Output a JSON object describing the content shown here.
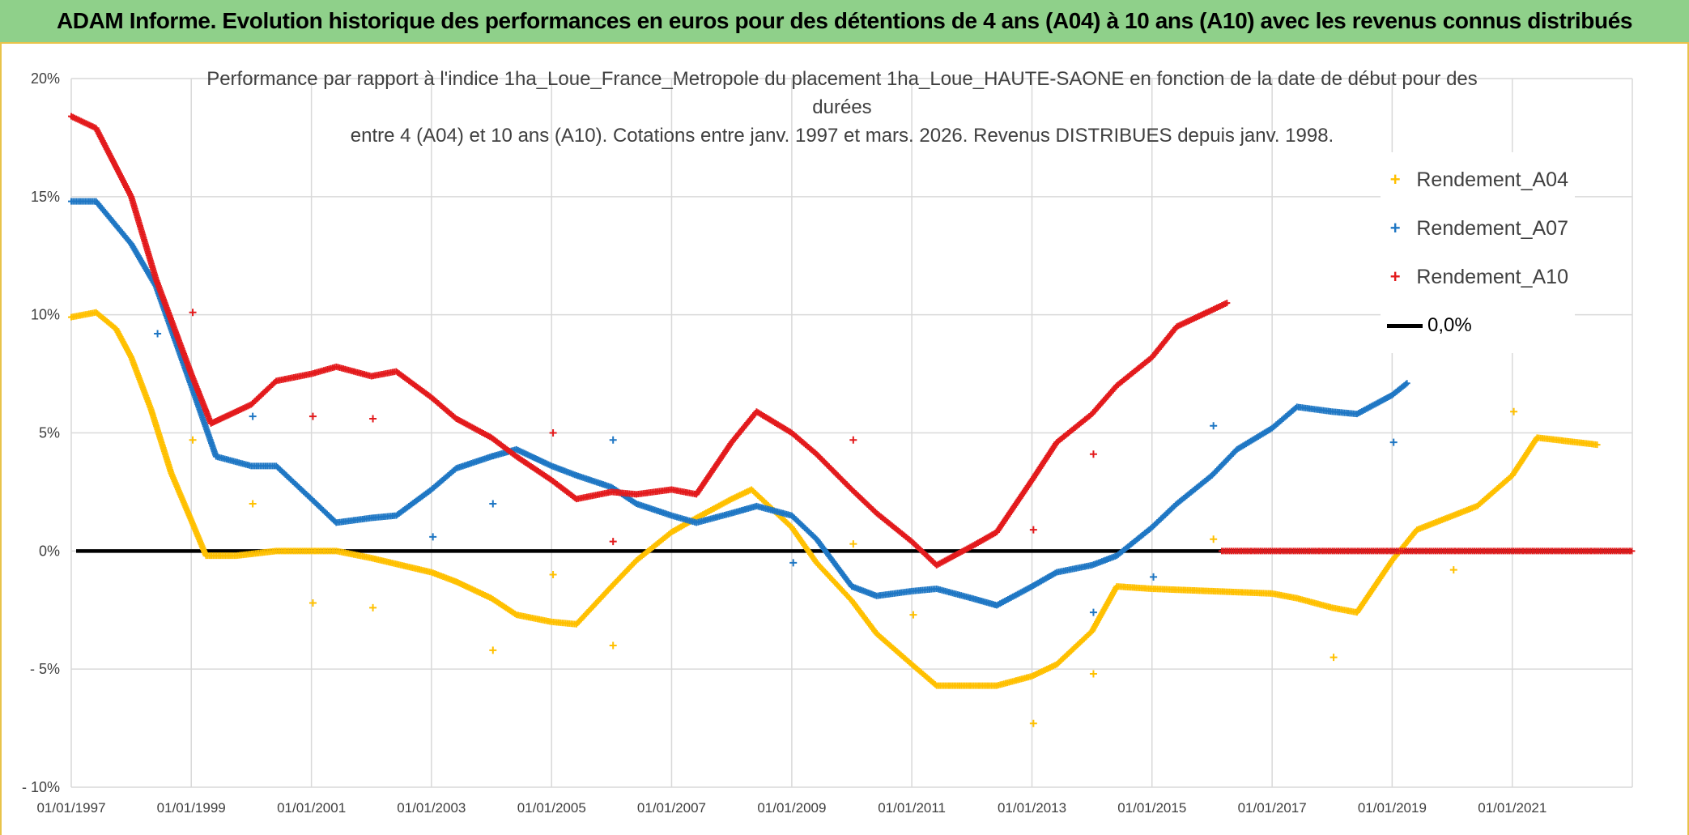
{
  "banner": {
    "title": "ADAM Informe. Evolution historique des performances en euros pour des détentions de 4 ans (A04) à 10 ans (A10) avec les revenus connus distribués"
  },
  "chart_data": {
    "type": "scatter",
    "title_lines": [
      "Performance par rapport à l'indice 1ha_Loue_France_Metropole  du placement 1ha_Loue_HAUTE-SAONE en fonction de la date de début pour des",
      "durées",
      "entre 4 (A04) et 10 ans (A10). Cotations entre janv. 1997 et mars. 2026. Revenus DISTRIBUES depuis janv. 1998."
    ],
    "y_ticks": [
      "20%",
      "15%",
      "10%",
      "5%",
      "0%",
      "- 5%",
      "- 10%"
    ],
    "y_tick_values": [
      20,
      15,
      10,
      5,
      0,
      -5,
      -10
    ],
    "ylim": [
      -10,
      20
    ],
    "x_ticks": [
      "01/01/1997",
      "01/01/1999",
      "01/01/2001",
      "01/01/2003",
      "01/01/2005",
      "01/01/2007",
      "01/01/2009",
      "01/01/2011",
      "01/01/2013",
      "01/01/2015",
      "01/01/2017",
      "01/01/2019",
      "01/01/2021"
    ],
    "xlim": [
      "1997-01-01",
      "2023-01-01"
    ],
    "grid": true,
    "legend_position": "right",
    "zero_line": {
      "name": "0,0%",
      "color": "#000000",
      "value": 0
    },
    "series": [
      {
        "name": "Rendement_A04",
        "color": "#ffc000",
        "points": [
          [
            "1997-01-01",
            9.9
          ],
          [
            "1997-06-01",
            10.1
          ],
          [
            "1997-10-01",
            9.4
          ],
          [
            "1998-01-01",
            8.2
          ],
          [
            "1998-05-01",
            6.0
          ],
          [
            "1998-09-01",
            3.3
          ],
          [
            "1999-01-01",
            1.3
          ],
          [
            "1999-04-01",
            -0.2
          ],
          [
            "1999-10-01",
            -0.2
          ],
          [
            "2000-06-01",
            0.0
          ],
          [
            "2001-01-01",
            0.0
          ],
          [
            "2001-06-01",
            0.0
          ],
          [
            "2002-01-01",
            -0.3
          ],
          [
            "2003-01-01",
            -0.9
          ],
          [
            "2003-06-01",
            -1.3
          ],
          [
            "2004-01-01",
            -2.0
          ],
          [
            "2004-06-01",
            -2.7
          ],
          [
            "2005-01-01",
            -3.0
          ],
          [
            "2005-06-01",
            -3.1
          ],
          [
            "2006-01-01",
            -1.5
          ],
          [
            "2006-06-01",
            -0.4
          ],
          [
            "2007-01-01",
            0.8
          ],
          [
            "2007-06-01",
            1.4
          ],
          [
            "2008-01-01",
            2.2
          ],
          [
            "2008-05-01",
            2.6
          ],
          [
            "2009-01-01",
            1.0
          ],
          [
            "2009-06-01",
            -0.5
          ],
          [
            "2010-01-01",
            -2.1
          ],
          [
            "2010-06-01",
            -3.5
          ],
          [
            "2011-01-01",
            -4.8
          ],
          [
            "2011-06-01",
            -5.7
          ],
          [
            "2012-01-01",
            -5.7
          ],
          [
            "2012-06-01",
            -5.7
          ],
          [
            "2013-01-01",
            -5.3
          ],
          [
            "2013-06-01",
            -4.8
          ],
          [
            "2014-01-01",
            -3.4
          ],
          [
            "2014-06-01",
            -1.5
          ],
          [
            "2015-01-01",
            -1.6
          ],
          [
            "2016-01-01",
            -1.7
          ],
          [
            "2017-01-01",
            -1.8
          ],
          [
            "2017-06-01",
            -2.0
          ],
          [
            "2018-01-01",
            -2.4
          ],
          [
            "2018-06-01",
            -2.6
          ],
          [
            "2019-01-01",
            -0.4
          ],
          [
            "2019-06-01",
            0.9
          ],
          [
            "2020-06-01",
            1.9
          ],
          [
            "2021-01-01",
            3.2
          ],
          [
            "2021-06-01",
            4.8
          ],
          [
            "2022-06-01",
            4.5
          ]
        ],
        "outliers": [
          [
            "1999-01-10",
            4.7
          ],
          [
            "2000-01-10",
            2.0
          ],
          [
            "2001-01-10",
            -2.2
          ],
          [
            "2002-01-10",
            -2.4
          ],
          [
            "2004-01-10",
            -4.2
          ],
          [
            "2005-01-10",
            -1.0
          ],
          [
            "2006-01-10",
            -4.0
          ],
          [
            "2010-01-10",
            0.3
          ],
          [
            "2011-01-10",
            -2.7
          ],
          [
            "2013-01-10",
            -7.3
          ],
          [
            "2014-01-10",
            -5.2
          ],
          [
            "2016-01-10",
            0.5
          ],
          [
            "2018-01-10",
            -4.5
          ],
          [
            "2020-01-10",
            -0.8
          ],
          [
            "2021-01-10",
            5.9
          ]
        ]
      },
      {
        "name": "Rendement_A07",
        "color": "#1f77c4",
        "points": [
          [
            "1997-01-01",
            14.8
          ],
          [
            "1997-06-01",
            14.8
          ],
          [
            "1998-01-01",
            13.0
          ],
          [
            "1998-06-01",
            11.2
          ],
          [
            "1999-01-01",
            7.0
          ],
          [
            "1999-06-01",
            4.0
          ],
          [
            "2000-01-01",
            3.6
          ],
          [
            "2000-06-01",
            3.6
          ],
          [
            "2001-01-01",
            2.2
          ],
          [
            "2001-06-01",
            1.2
          ],
          [
            "2002-01-01",
            1.4
          ],
          [
            "2002-06-01",
            1.5
          ],
          [
            "2003-01-01",
            2.6
          ],
          [
            "2003-06-01",
            3.5
          ],
          [
            "2004-01-01",
            4.0
          ],
          [
            "2004-06-01",
            4.3
          ],
          [
            "2005-01-01",
            3.6
          ],
          [
            "2005-06-01",
            3.2
          ],
          [
            "2006-01-01",
            2.7
          ],
          [
            "2006-06-01",
            2.0
          ],
          [
            "2007-01-01",
            1.5
          ],
          [
            "2007-06-01",
            1.2
          ],
          [
            "2008-01-01",
            1.6
          ],
          [
            "2008-06-01",
            1.9
          ],
          [
            "2009-01-01",
            1.5
          ],
          [
            "2009-06-01",
            0.5
          ],
          [
            "2010-01-01",
            -1.5
          ],
          [
            "2010-06-01",
            -1.9
          ],
          [
            "2011-01-01",
            -1.7
          ],
          [
            "2011-06-01",
            -1.6
          ],
          [
            "2012-01-01",
            -2.0
          ],
          [
            "2012-06-01",
            -2.3
          ],
          [
            "2013-01-01",
            -1.5
          ],
          [
            "2013-06-01",
            -0.9
          ],
          [
            "2014-01-01",
            -0.6
          ],
          [
            "2014-06-01",
            -0.2
          ],
          [
            "2015-01-01",
            1.0
          ],
          [
            "2015-06-01",
            2.0
          ],
          [
            "2016-01-01",
            3.2
          ],
          [
            "2016-06-01",
            4.3
          ],
          [
            "2017-01-01",
            5.2
          ],
          [
            "2017-06-01",
            6.1
          ],
          [
            "2018-01-01",
            5.9
          ],
          [
            "2018-06-01",
            5.8
          ],
          [
            "2019-01-01",
            6.6
          ],
          [
            "2019-04-01",
            7.1
          ]
        ],
        "outliers": [
          [
            "1998-06-10",
            9.2
          ],
          [
            "2000-01-10",
            5.7
          ],
          [
            "2003-01-10",
            0.6
          ],
          [
            "2004-01-10",
            2.0
          ],
          [
            "2006-01-10",
            4.7
          ],
          [
            "2009-01-10",
            -0.5
          ],
          [
            "2015-01-10",
            -1.1
          ],
          [
            "2016-01-10",
            5.3
          ],
          [
            "2014-01-10",
            -2.6
          ],
          [
            "2019-01-10",
            4.6
          ]
        ]
      },
      {
        "name": "Rendement_A10",
        "color": "#e31a1c",
        "points": [
          [
            "1997-01-01",
            18.4
          ],
          [
            "1997-06-01",
            17.9
          ],
          [
            "1998-01-01",
            15.0
          ],
          [
            "1998-06-01",
            11.5
          ],
          [
            "1999-01-01",
            7.5
          ],
          [
            "1999-05-01",
            5.4
          ],
          [
            "2000-01-01",
            6.2
          ],
          [
            "2000-06-01",
            7.2
          ],
          [
            "2001-01-01",
            7.5
          ],
          [
            "2001-06-01",
            7.8
          ],
          [
            "2002-01-01",
            7.4
          ],
          [
            "2002-06-01",
            7.6
          ],
          [
            "2003-01-01",
            6.5
          ],
          [
            "2003-06-01",
            5.6
          ],
          [
            "2004-01-01",
            4.8
          ],
          [
            "2004-06-01",
            4.0
          ],
          [
            "2005-01-01",
            3.0
          ],
          [
            "2005-06-01",
            2.2
          ],
          [
            "2006-01-01",
            2.5
          ],
          [
            "2006-06-01",
            2.4
          ],
          [
            "2007-01-01",
            2.6
          ],
          [
            "2007-06-01",
            2.4
          ],
          [
            "2008-01-01",
            4.6
          ],
          [
            "2008-06-01",
            5.9
          ],
          [
            "2009-01-01",
            5.0
          ],
          [
            "2009-06-01",
            4.1
          ],
          [
            "2010-01-01",
            2.6
          ],
          [
            "2010-06-01",
            1.6
          ],
          [
            "2011-01-01",
            0.4
          ],
          [
            "2011-06-01",
            -0.6
          ],
          [
            "2012-01-01",
            0.2
          ],
          [
            "2012-06-01",
            0.8
          ],
          [
            "2013-01-01",
            3.0
          ],
          [
            "2013-06-01",
            4.6
          ],
          [
            "2014-01-01",
            5.8
          ],
          [
            "2014-06-01",
            7.0
          ],
          [
            "2015-01-01",
            8.2
          ],
          [
            "2015-06-01",
            9.5
          ],
          [
            "2016-01-01",
            10.2
          ],
          [
            "2016-04-01",
            10.5
          ]
        ],
        "flat_zero_from": "2016-03-01",
        "outliers": [
          [
            "1999-01-10",
            10.1
          ],
          [
            "2001-01-10",
            5.7
          ],
          [
            "2002-01-10",
            5.6
          ],
          [
            "2005-01-10",
            5.0
          ],
          [
            "2006-01-10",
            0.4
          ],
          [
            "2010-01-10",
            4.7
          ],
          [
            "2013-01-10",
            0.9
          ],
          [
            "2014-01-10",
            4.1
          ]
        ]
      }
    ]
  }
}
